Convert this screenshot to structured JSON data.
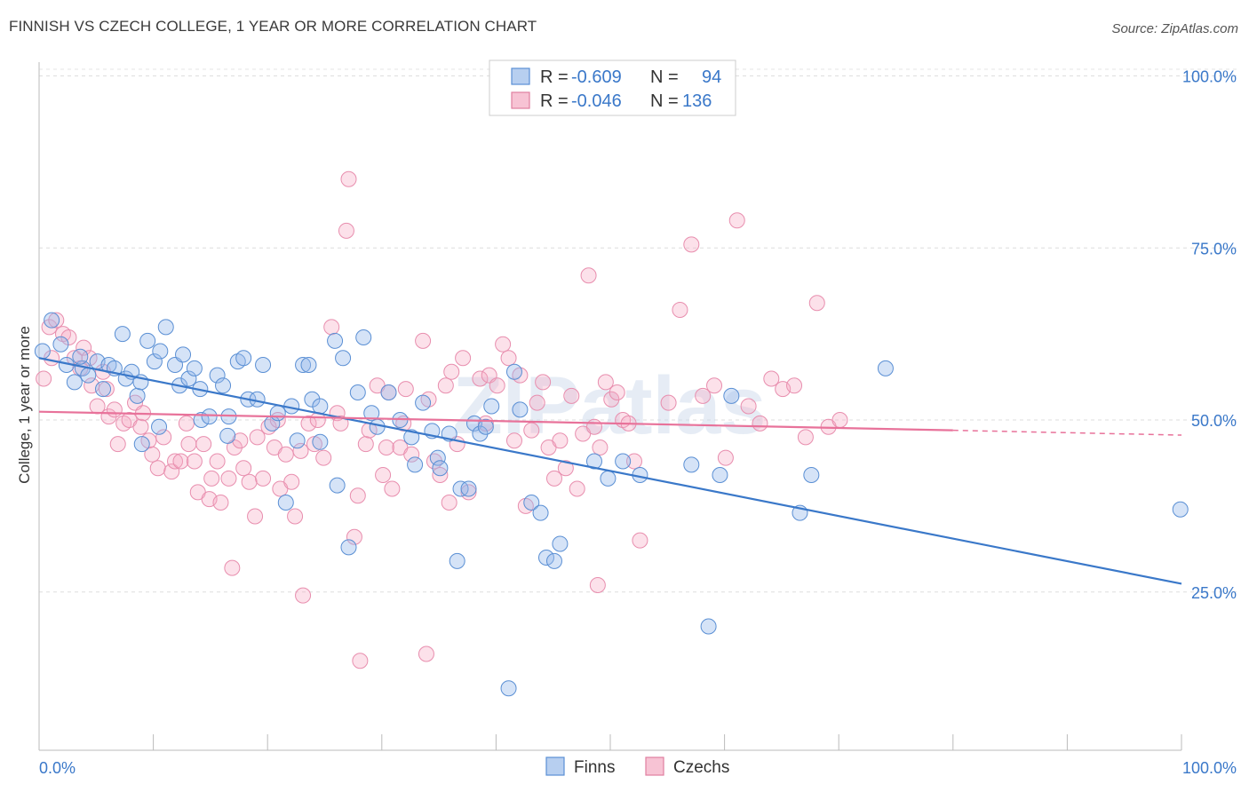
{
  "title": "FINNISH VS CZECH COLLEGE, 1 YEAR OR MORE CORRELATION CHART",
  "source": "Source: ZipAtlas.com",
  "watermark": "ZIPatlas",
  "chart_data": {
    "type": "scatter",
    "ylabel": "College, 1 year or more",
    "xlabel": "",
    "xlim": [
      0,
      100
    ],
    "ylim": [
      2,
      102
    ],
    "x_tick_labels": [
      "0.0%",
      "100.0%"
    ],
    "y_ticks": [
      25,
      50,
      75,
      100
    ],
    "y_tick_labels": [
      "25.0%",
      "50.0%",
      "75.0%",
      "100.0%"
    ],
    "grid": "horizontal dashed",
    "legend_position": "top-center",
    "colors": {
      "finns": "#3a78c9",
      "czechs": "#e8729a"
    },
    "stats": {
      "finns": {
        "r_label": "R =",
        "r_value": "-0.609",
        "n_label": "N =",
        "n_value": "94"
      },
      "czechs": {
        "r_label": "R =",
        "r_value": "-0.046",
        "n_label": "N =",
        "n_value": "136"
      }
    },
    "series": [
      {
        "name": "Finns",
        "color": "#3a78c9",
        "trend": {
          "x": [
            0,
            100
          ],
          "y": [
            59,
            26.2
          ]
        },
        "points": [
          [
            0.3,
            60
          ],
          [
            1.1,
            64.5
          ],
          [
            1.9,
            61
          ],
          [
            2.4,
            58
          ],
          [
            3.1,
            55.5
          ],
          [
            3.8,
            57.5
          ],
          [
            4.3,
            56.5
          ],
          [
            5.1,
            58.5
          ],
          [
            5.6,
            54.5
          ],
          [
            6.1,
            58
          ],
          [
            6.6,
            57.5
          ],
          [
            7.3,
            62.5
          ],
          [
            7.6,
            56
          ],
          [
            8.1,
            57
          ],
          [
            8.6,
            53.5
          ],
          [
            8.9,
            55.5
          ],
          [
            9.5,
            61.5
          ],
          [
            10.1,
            58.5
          ],
          [
            10.6,
            60
          ],
          [
            10.5,
            49
          ],
          [
            11.1,
            63.5
          ],
          [
            11.9,
            58
          ],
          [
            12.3,
            55
          ],
          [
            12.6,
            59.5
          ],
          [
            13.1,
            56
          ],
          [
            13.6,
            57.5
          ],
          [
            14.2,
            50
          ],
          [
            14.1,
            54.5
          ],
          [
            14.9,
            50.5
          ],
          [
            15.6,
            56.5
          ],
          [
            16.1,
            55
          ],
          [
            16.6,
            50.5
          ],
          [
            17.4,
            58.5
          ],
          [
            17.9,
            59
          ],
          [
            18.3,
            53
          ],
          [
            19.1,
            53
          ],
          [
            19.6,
            58
          ],
          [
            20.4,
            49.5
          ],
          [
            20.9,
            51
          ],
          [
            21.6,
            38
          ],
          [
            22.1,
            52
          ],
          [
            22.6,
            47
          ],
          [
            23.1,
            58
          ],
          [
            23.6,
            58
          ],
          [
            23.9,
            53
          ],
          [
            24.6,
            52
          ],
          [
            25.9,
            61.5
          ],
          [
            26.1,
            40.5
          ],
          [
            26.6,
            59
          ],
          [
            27.1,
            31.5
          ],
          [
            27.9,
            54
          ],
          [
            28.4,
            62
          ],
          [
            29.1,
            51
          ],
          [
            29.6,
            49
          ],
          [
            30.6,
            54
          ],
          [
            31.6,
            50
          ],
          [
            32.6,
            47.5
          ],
          [
            32.9,
            43.5
          ],
          [
            33.6,
            52.5
          ],
          [
            34.9,
            44.5
          ],
          [
            35.1,
            43
          ],
          [
            35.9,
            48
          ],
          [
            36.6,
            29.5
          ],
          [
            36.9,
            40
          ],
          [
            37.6,
            40
          ],
          [
            38.1,
            49.5
          ],
          [
            38.6,
            48
          ],
          [
            39.1,
            49
          ],
          [
            39.6,
            52
          ],
          [
            41.1,
            11
          ],
          [
            41.6,
            57
          ],
          [
            43.1,
            38
          ],
          [
            43.9,
            36.5
          ],
          [
            44.4,
            30
          ],
          [
            45.1,
            29.5
          ],
          [
            45.6,
            32
          ],
          [
            48.6,
            44
          ],
          [
            51.1,
            44
          ],
          [
            52.6,
            42
          ],
          [
            57.1,
            43.5
          ],
          [
            58.6,
            20
          ],
          [
            59.6,
            42
          ],
          [
            60.6,
            53.5
          ],
          [
            66.6,
            36.5
          ],
          [
            67.6,
            42
          ],
          [
            74.1,
            57.5
          ],
          [
            99.9,
            37
          ],
          [
            3.6,
            59.2
          ],
          [
            9.0,
            46.5
          ],
          [
            16.5,
            47.7
          ],
          [
            24.6,
            46.8
          ],
          [
            34.4,
            48.4
          ],
          [
            42.1,
            51.5
          ],
          [
            49.8,
            41.5
          ]
        ]
      },
      {
        "name": "Czechs",
        "color": "#e8729a",
        "trend": {
          "x": [
            0,
            80
          ],
          "y": [
            51.2,
            48.5
          ]
        },
        "trend_dashed_to": [
          100,
          47.8
        ],
        "points": [
          [
            0.4,
            56
          ],
          [
            0.9,
            63.5
          ],
          [
            1.1,
            59
          ],
          [
            1.5,
            64.5
          ],
          [
            2.1,
            62.5
          ],
          [
            2.6,
            62
          ],
          [
            3.1,
            59
          ],
          [
            3.6,
            57.5
          ],
          [
            3.9,
            60.5
          ],
          [
            4.4,
            59
          ],
          [
            4.6,
            55
          ],
          [
            5.1,
            52
          ],
          [
            5.6,
            57
          ],
          [
            5.9,
            54.5
          ],
          [
            6.1,
            50.5
          ],
          [
            6.6,
            51.5
          ],
          [
            6.9,
            46.5
          ],
          [
            7.4,
            49.5
          ],
          [
            7.9,
            50
          ],
          [
            8.4,
            52.5
          ],
          [
            8.9,
            49
          ],
          [
            9.1,
            51
          ],
          [
            9.6,
            47
          ],
          [
            9.9,
            45
          ],
          [
            10.4,
            43
          ],
          [
            10.9,
            47.5
          ],
          [
            11.6,
            42.5
          ],
          [
            11.9,
            44
          ],
          [
            12.4,
            44
          ],
          [
            12.9,
            49.5
          ],
          [
            13.1,
            46.5
          ],
          [
            13.6,
            44
          ],
          [
            13.9,
            39.5
          ],
          [
            14.4,
            46.5
          ],
          [
            14.9,
            38.5
          ],
          [
            15.1,
            41.5
          ],
          [
            15.6,
            44
          ],
          [
            15.9,
            38
          ],
          [
            16.6,
            41.5
          ],
          [
            16.9,
            28.5
          ],
          [
            17.1,
            46
          ],
          [
            17.6,
            47
          ],
          [
            17.9,
            43
          ],
          [
            18.4,
            41
          ],
          [
            18.9,
            36
          ],
          [
            19.1,
            47.5
          ],
          [
            19.6,
            41.5
          ],
          [
            20.1,
            49
          ],
          [
            20.6,
            46
          ],
          [
            20.9,
            50
          ],
          [
            21.1,
            40
          ],
          [
            21.6,
            45
          ],
          [
            22.1,
            41
          ],
          [
            22.4,
            36
          ],
          [
            22.9,
            45.5
          ],
          [
            23.1,
            24.5
          ],
          [
            23.6,
            49.5
          ],
          [
            24.1,
            46.5
          ],
          [
            24.4,
            50
          ],
          [
            24.9,
            44.5
          ],
          [
            25.6,
            63.5
          ],
          [
            26.1,
            51
          ],
          [
            26.4,
            49.5
          ],
          [
            26.9,
            77.5
          ],
          [
            27.1,
            85
          ],
          [
            27.6,
            33
          ],
          [
            27.9,
            39
          ],
          [
            28.1,
            15
          ],
          [
            28.6,
            46.5
          ],
          [
            28.9,
            48.5
          ],
          [
            29.6,
            55
          ],
          [
            30.1,
            42
          ],
          [
            30.4,
            46
          ],
          [
            30.6,
            54
          ],
          [
            30.9,
            40
          ],
          [
            31.6,
            46
          ],
          [
            31.9,
            49.5
          ],
          [
            32.1,
            54.5
          ],
          [
            32.6,
            45
          ],
          [
            33.6,
            61.5
          ],
          [
            33.9,
            16
          ],
          [
            34.1,
            53
          ],
          [
            34.6,
            44
          ],
          [
            35.1,
            42
          ],
          [
            35.6,
            55
          ],
          [
            35.9,
            38
          ],
          [
            36.1,
            57
          ],
          [
            36.6,
            46.5
          ],
          [
            37.1,
            59
          ],
          [
            37.6,
            39.5
          ],
          [
            38.6,
            56
          ],
          [
            39.1,
            49.5
          ],
          [
            39.4,
            56.5
          ],
          [
            40.1,
            55
          ],
          [
            40.6,
            61
          ],
          [
            41.1,
            59
          ],
          [
            41.6,
            47
          ],
          [
            42.1,
            56.5
          ],
          [
            42.6,
            37.5
          ],
          [
            43.1,
            48.5
          ],
          [
            43.6,
            52.5
          ],
          [
            44.1,
            55.5
          ],
          [
            44.6,
            46
          ],
          [
            45.1,
            41.5
          ],
          [
            45.6,
            47
          ],
          [
            46.1,
            43
          ],
          [
            46.6,
            53.5
          ],
          [
            47.1,
            40
          ],
          [
            47.6,
            48
          ],
          [
            48.1,
            71
          ],
          [
            48.6,
            49
          ],
          [
            48.9,
            26
          ],
          [
            49.1,
            46
          ],
          [
            49.6,
            55.5
          ],
          [
            50.1,
            53
          ],
          [
            50.6,
            54
          ],
          [
            51.1,
            50
          ],
          [
            51.6,
            49.5
          ],
          [
            52.1,
            44
          ],
          [
            52.6,
            32.5
          ],
          [
            55.1,
            52.5
          ],
          [
            56.1,
            66
          ],
          [
            57.1,
            75.5
          ],
          [
            58.1,
            53.5
          ],
          [
            59.1,
            55
          ],
          [
            60.1,
            44.5
          ],
          [
            61.1,
            79
          ],
          [
            62.1,
            52
          ],
          [
            63.1,
            49.5
          ],
          [
            64.1,
            56
          ],
          [
            65.1,
            54.5
          ],
          [
            66.1,
            55
          ],
          [
            67.1,
            47.5
          ],
          [
            68.1,
            67
          ],
          [
            69.1,
            49
          ],
          [
            70.1,
            50
          ]
        ]
      }
    ]
  },
  "legend": {
    "finns_label": "Finns",
    "czechs_label": "Czechs"
  }
}
